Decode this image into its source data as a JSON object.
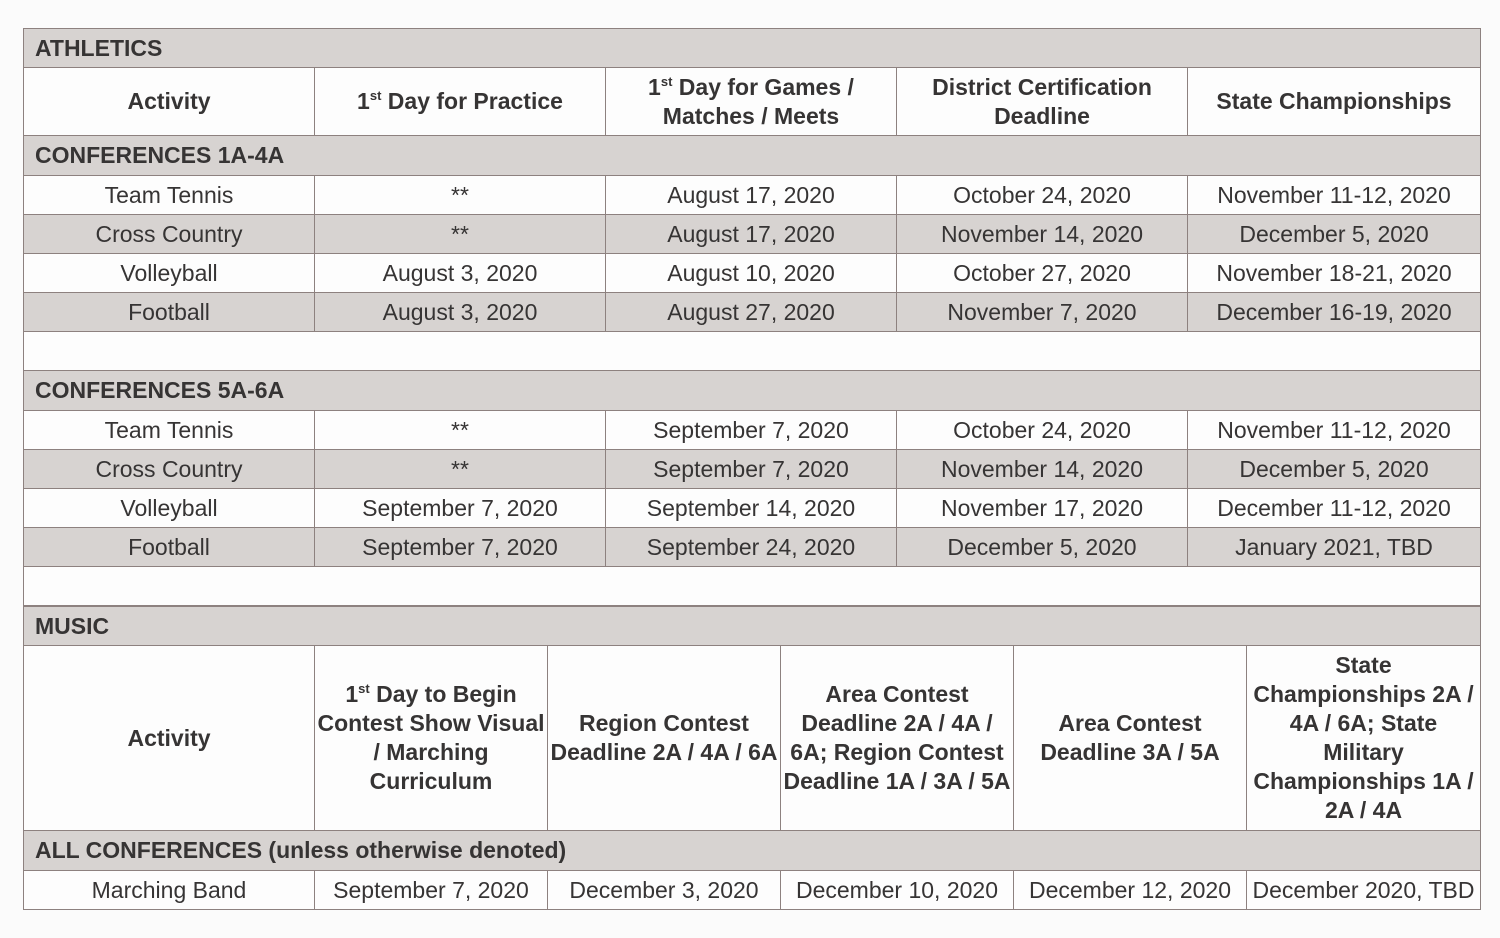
{
  "athletics": {
    "title": "ATHLETICS",
    "headers": [
      {
        "text": "Activity"
      },
      {
        "pre": "1",
        "sup": "st",
        "text": " Day for Practice"
      },
      {
        "pre": "1",
        "sup": "st",
        "text": " Day for Games / Matches / Meets"
      },
      {
        "text": "District Certification Deadline"
      },
      {
        "text": "State Championships"
      }
    ],
    "sections": [
      {
        "title": "CONFERENCES 1A-4A",
        "rows": [
          [
            "Team Tennis",
            "**",
            "August 17, 2020",
            "October 24, 2020",
            "November 11-12, 2020"
          ],
          [
            "Cross Country",
            "**",
            "August 17, 2020",
            "November 14, 2020",
            "December 5, 2020"
          ],
          [
            "Volleyball",
            "August 3, 2020",
            "August 10, 2020",
            "October 27, 2020",
            "November 18-21, 2020"
          ],
          [
            "Football",
            "August 3, 2020",
            "August 27, 2020",
            "November 7, 2020",
            "December 16-19, 2020"
          ]
        ]
      },
      {
        "title": "CONFERENCES 5A-6A",
        "rows": [
          [
            "Team Tennis",
            "**",
            "September 7, 2020",
            "October 24, 2020",
            "November 11-12, 2020"
          ],
          [
            "Cross Country",
            "**",
            "September 7, 2020",
            "November 14, 2020",
            "December 5, 2020"
          ],
          [
            "Volleyball",
            "September 7, 2020",
            "September 14, 2020",
            "November 17, 2020",
            "December 11-12, 2020"
          ],
          [
            "Football",
            "September 7, 2020",
            "September 24, 2020",
            "December 5, 2020",
            "January 2021, TBD"
          ]
        ]
      }
    ]
  },
  "music": {
    "title": "MUSIC",
    "headers": [
      {
        "text": "Activity"
      },
      {
        "pre": "1",
        "sup": "st",
        "text": " Day to Begin Contest Show Visual / Marching Curriculum"
      },
      {
        "text": "Region Contest Deadline 2A / 4A / 6A"
      },
      {
        "text": "Area Contest Deadline 2A / 4A / 6A; Region Contest Deadline 1A / 3A / 5A"
      },
      {
        "text": "Area Contest Deadline 3A / 5A"
      },
      {
        "text": "State Championships 2A / 4A / 6A; State Military Championships 1A / 2A / 4A"
      }
    ],
    "section_title": "ALL CONFERENCES (unless otherwise denoted)",
    "rows": [
      [
        "Marching Band",
        "September 7, 2020",
        "December 3, 2020",
        "December 10, 2020",
        "December 12, 2020",
        "December 2020, TBD"
      ]
    ]
  },
  "colors": {
    "section_bg": "#d7d3d1",
    "border": "#8d817f",
    "text": "#363434"
  }
}
